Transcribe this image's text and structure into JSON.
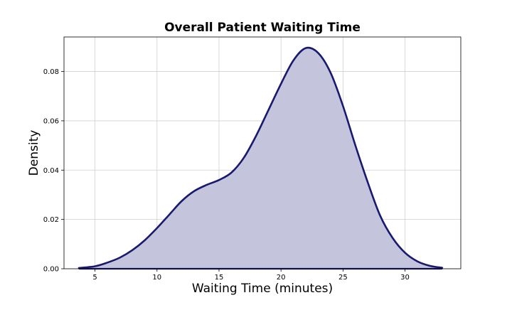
{
  "chart_data": {
    "type": "area",
    "title": "Overall Patient Waiting Time",
    "xlabel": "Waiting Time (minutes)",
    "ylabel": "Density",
    "xlim": [
      2.5,
      34.5
    ],
    "ylim": [
      0,
      0.094
    ],
    "x_ticks": [
      5,
      10,
      15,
      20,
      25,
      30
    ],
    "x_tick_labels": [
      "5",
      "10",
      "15",
      "20",
      "25",
      "30"
    ],
    "y_ticks": [
      0,
      0.02,
      0.04,
      0.06,
      0.08
    ],
    "y_tick_labels": [
      "0.00",
      "0.02",
      "0.04",
      "0.06",
      "0.08"
    ],
    "grid": true,
    "legend": "none",
    "series": [
      {
        "line_color": "#191970",
        "fill_color": "#c4c4dc",
        "points": [
          [
            3.7,
            0.0003
          ],
          [
            5,
            0.001
          ],
          [
            6,
            0.0025
          ],
          [
            7,
            0.0045
          ],
          [
            8,
            0.0075
          ],
          [
            9,
            0.0115
          ],
          [
            10,
            0.0165
          ],
          [
            11,
            0.022
          ],
          [
            12,
            0.0275
          ],
          [
            13,
            0.0315
          ],
          [
            14,
            0.034
          ],
          [
            15,
            0.036
          ],
          [
            16,
            0.039
          ],
          [
            17,
            0.045
          ],
          [
            18,
            0.054
          ],
          [
            19,
            0.0645
          ],
          [
            20,
            0.075
          ],
          [
            21,
            0.0845
          ],
          [
            22,
            0.0895
          ],
          [
            23,
            0.0875
          ],
          [
            24,
            0.0795
          ],
          [
            25,
            0.066
          ],
          [
            26,
            0.05
          ],
          [
            27,
            0.035
          ],
          [
            28,
            0.0215
          ],
          [
            29,
            0.0125
          ],
          [
            30,
            0.0065
          ],
          [
            31,
            0.003
          ],
          [
            32,
            0.0012
          ],
          [
            33,
            0.0004
          ]
        ]
      }
    ]
  }
}
